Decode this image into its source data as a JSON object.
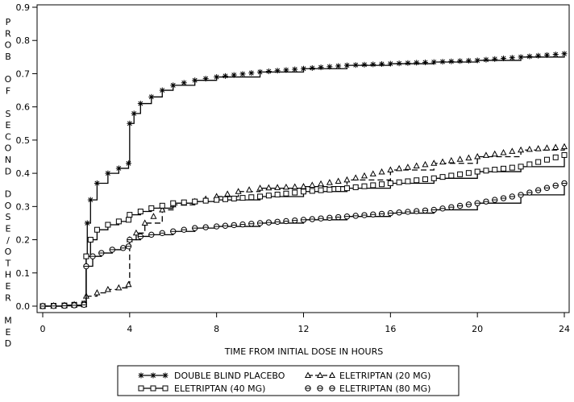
{
  "chart_data": {
    "type": "line",
    "title": "",
    "xlabel": "TIME FROM INITIAL DOSE IN HOURS",
    "ylabel": "PROB OF SECOND DOSE/OTHER MED",
    "xlim": [
      0,
      24
    ],
    "ylim": [
      0,
      0.9
    ],
    "x_ticks": [
      0,
      4,
      8,
      12,
      16,
      20,
      24
    ],
    "y_ticks": [
      0.0,
      0.1,
      0.2,
      0.3,
      0.4,
      0.5,
      0.6,
      0.7,
      0.8,
      0.9
    ],
    "x_tick_labels": [
      "0",
      "4",
      "8",
      "12",
      "16",
      "20",
      "24"
    ],
    "y_tick_labels": [
      "0.0",
      "0.1",
      "0.2",
      "0.3",
      "0.4",
      "0.5",
      "0.6",
      "0.7",
      "0.8",
      "0.9"
    ],
    "grid": false,
    "legend_position": "bottom",
    "series": [
      {
        "name": "DOUBLE BLIND PLACEBO",
        "marker": "asterisk",
        "line_style": "solid",
        "color": "#000000",
        "x": [
          0,
          1,
          1.9,
          2.0,
          2.05,
          2.2,
          2.5,
          3.0,
          3.5,
          3.95,
          4.0,
          4.2,
          4.5,
          5.0,
          5.5,
          6.0,
          7,
          8,
          10,
          12,
          14,
          16,
          18,
          20,
          22,
          24
        ],
        "y": [
          0.0,
          0.003,
          0.01,
          0.15,
          0.25,
          0.32,
          0.37,
          0.4,
          0.415,
          0.43,
          0.55,
          0.58,
          0.61,
          0.63,
          0.65,
          0.665,
          0.68,
          0.69,
          0.705,
          0.715,
          0.725,
          0.73,
          0.735,
          0.74,
          0.75,
          0.76
        ]
      },
      {
        "name": "ELETRIPTAN (20 MG)",
        "marker": "triangle",
        "line_style": "dashed",
        "color": "#000000",
        "x": [
          0,
          1,
          1.9,
          2.0,
          2.5,
          3.0,
          3.5,
          3.95,
          4.0,
          4.3,
          4.7,
          5.5,
          6.0,
          7,
          8,
          9,
          10,
          12,
          14,
          16,
          18,
          20,
          22,
          24
        ],
        "y": [
          0.0,
          0.002,
          0.005,
          0.03,
          0.04,
          0.05,
          0.055,
          0.065,
          0.2,
          0.22,
          0.25,
          0.29,
          0.305,
          0.315,
          0.33,
          0.345,
          0.355,
          0.36,
          0.38,
          0.41,
          0.43,
          0.45,
          0.47,
          0.48
        ]
      },
      {
        "name": "ELETRIPTAN (40 MG)",
        "marker": "square",
        "line_style": "solid",
        "color": "#000000",
        "x": [
          0,
          1,
          1.9,
          2.0,
          2.2,
          2.5,
          3.0,
          3.5,
          3.95,
          4.0,
          4.5,
          5.0,
          6.0,
          7,
          8,
          10,
          12,
          14,
          16,
          18,
          20,
          22,
          24
        ],
        "y": [
          0.0,
          0.002,
          0.005,
          0.15,
          0.2,
          0.23,
          0.245,
          0.255,
          0.26,
          0.275,
          0.285,
          0.295,
          0.31,
          0.315,
          0.32,
          0.33,
          0.345,
          0.355,
          0.37,
          0.385,
          0.405,
          0.42,
          0.455
        ]
      },
      {
        "name": "ELETRIPTAN (80 MG)",
        "marker": "circle-line",
        "line_style": "solid",
        "color": "#000000",
        "x": [
          0,
          1,
          1.9,
          2.0,
          2.3,
          2.7,
          3.2,
          3.7,
          3.95,
          4.0,
          4.5,
          5.0,
          6.0,
          7,
          8,
          10,
          12,
          14,
          16,
          18,
          20,
          22,
          24
        ],
        "y": [
          0.0,
          0.001,
          0.004,
          0.12,
          0.15,
          0.16,
          0.17,
          0.175,
          0.18,
          0.2,
          0.21,
          0.215,
          0.225,
          0.235,
          0.24,
          0.25,
          0.26,
          0.27,
          0.28,
          0.29,
          0.31,
          0.335,
          0.37
        ]
      }
    ]
  }
}
